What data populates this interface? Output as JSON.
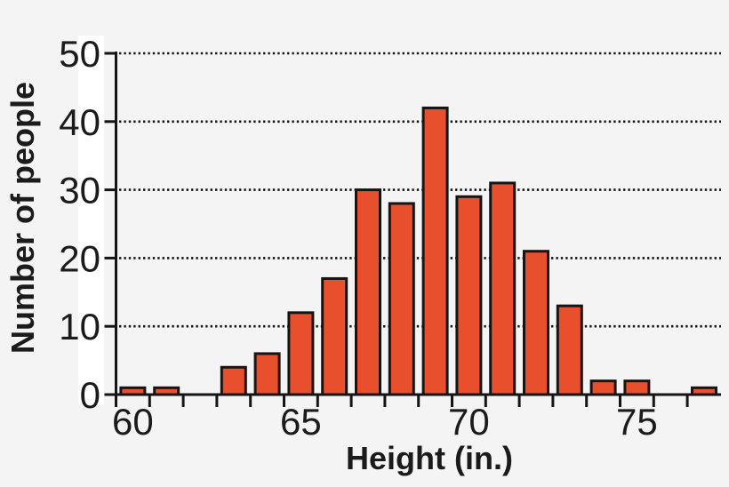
{
  "figure": {
    "background_color": "#f4f4f4",
    "tick_label_backdrop_color": "#ffffff",
    "axis_color": "#151515",
    "grid_color": "#151515",
    "text_color": "#1b1b1b"
  },
  "chart_data": {
    "type": "bar",
    "subtype": "histogram",
    "title": "",
    "xlabel": "Height (in.)",
    "ylabel": "Number of people",
    "categories": [
      60,
      61,
      62,
      63,
      64,
      65,
      66,
      67,
      68,
      69,
      70,
      71,
      72,
      73,
      74,
      75,
      76,
      77
    ],
    "values": [
      1,
      1,
      0,
      4,
      6,
      12,
      17,
      30,
      28,
      42,
      29,
      31,
      21,
      13,
      2,
      2,
      0,
      1
    ],
    "x_tick_labels": [
      60,
      65,
      70,
      75
    ],
    "y_ticks": [
      0,
      10,
      20,
      30,
      40,
      50
    ],
    "xlim": [
      59.5,
      77.5
    ],
    "ylim": [
      0,
      50
    ],
    "grid": "horizontal dotted lines at each y tick",
    "legend": "none",
    "bar_color": "#e8502d",
    "bar_edge_color": "#151515"
  }
}
